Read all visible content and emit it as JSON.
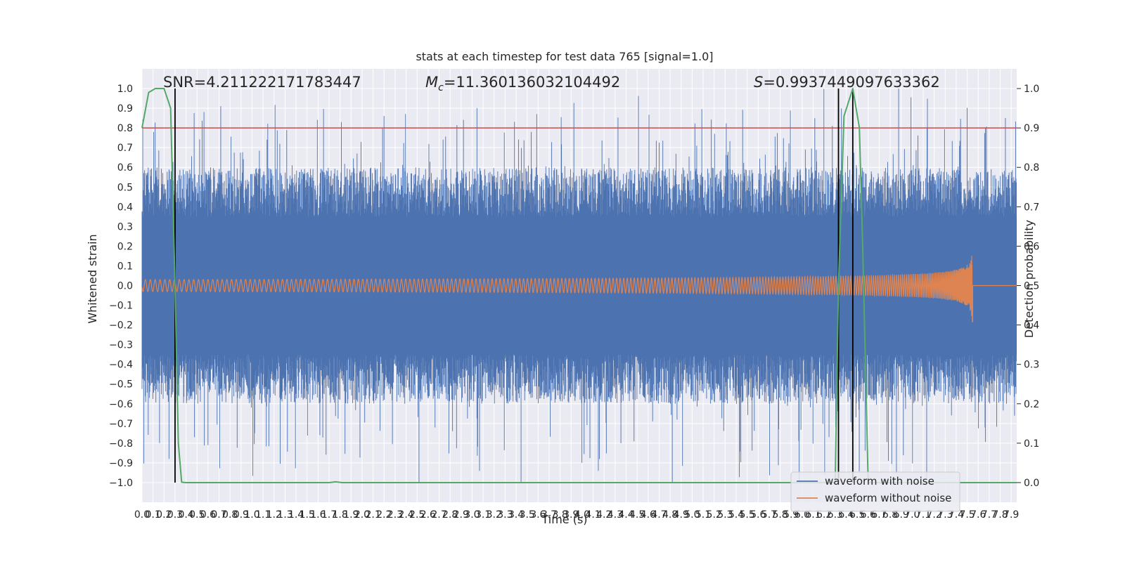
{
  "chart_data": {
    "type": "line",
    "title": "stats at each timestep for test data 765 [signal=1.0]",
    "xlabel": "Time (s)",
    "ylabel": "Whitened strain",
    "y2label": "Detection probability",
    "xlim": [
      0.0,
      7.95
    ],
    "ylim": [
      -1.1,
      1.1
    ],
    "y2lim": [
      -0.05,
      1.05
    ],
    "x_ticks": [
      "0.0",
      "0.1",
      "0.2",
      "0.3",
      "0.4",
      "0.5",
      "0.6",
      "0.7",
      "0.8",
      "0.9",
      "1.0",
      "1.1",
      "1.2",
      "1.3",
      "1.4",
      "1.5",
      "1.6",
      "1.7",
      "1.8",
      "1.9",
      "2.0",
      "2.1",
      "2.2",
      "2.3",
      "2.4",
      "2.5",
      "2.6",
      "2.7",
      "2.8",
      "2.9",
      "3.0",
      "3.1",
      "3.2",
      "3.3",
      "3.4",
      "3.5",
      "3.6",
      "3.7",
      "3.8",
      "3.9",
      "4.0",
      "4.1",
      "4.2",
      "4.3",
      "4.4",
      "4.5",
      "4.6",
      "4.7",
      "4.8",
      "4.9",
      "5.0",
      "5.1",
      "5.2",
      "5.3",
      "5.4",
      "5.5",
      "5.6",
      "5.7",
      "5.8",
      "5.9",
      "6.0",
      "6.1",
      "6.2",
      "6.3",
      "6.4",
      "6.5",
      "6.6",
      "6.7",
      "6.8",
      "6.9",
      "7.0",
      "7.1",
      "7.2",
      "7.3",
      "7.4",
      "7.5",
      "7.6",
      "7.7",
      "7.8",
      "7.9"
    ],
    "y_ticks": [
      "1.0",
      "0.9",
      "0.8",
      "0.7",
      "0.6",
      "0.5",
      "0.4",
      "0.3",
      "0.2",
      "0.1",
      "0.0",
      "−0.1",
      "−0.2",
      "−0.3",
      "−0.4",
      "−0.5",
      "−0.6",
      "−0.7",
      "−0.8",
      "−0.9",
      "−1.0"
    ],
    "y2_ticks": [
      "1.0",
      "0.9",
      "0.8",
      "0.7",
      "0.6",
      "0.5",
      "0.4",
      "0.3",
      "0.2",
      "0.1",
      "0.0"
    ],
    "threshold": 0.8,
    "vertical_lines": [
      0.3,
      6.33,
      6.46
    ],
    "annotations": [
      {
        "text": "SNR=4.211222171783447"
      },
      {
        "prefix": "M",
        "subscript": "c",
        "text": "=11.360136032104492"
      },
      {
        "prefix": "S",
        "text": "=0.9937449097633362"
      }
    ],
    "series": [
      {
        "name": "waveform with noise",
        "color": "#4c72b0",
        "axis": "left",
        "kind": "noise",
        "note_amplitude_core": 0.35,
        "peak": 1.0
      },
      {
        "name": "waveform without noise",
        "color": "#dd8452",
        "axis": "left",
        "kind": "chirp",
        "merger_time": 7.55,
        "peak": 0.2
      },
      {
        "name": "",
        "color": "#55a868",
        "axis": "right",
        "x": [
          0.0,
          0.06,
          0.12,
          0.2,
          0.26,
          0.3,
          0.33,
          0.36,
          0.4,
          1.7,
          1.76,
          1.82,
          6.3,
          6.33,
          6.38,
          6.46,
          6.52,
          6.55,
          6.6,
          7.95
        ],
        "y": [
          0.9,
          0.99,
          1.0,
          1.0,
          0.95,
          0.5,
          0.1,
          0.001,
          0.0,
          0.0,
          0.002,
          0.0,
          0.0,
          0.5,
          0.93,
          1.0,
          0.9,
          0.6,
          0.0,
          0.0
        ]
      }
    ],
    "legend_placement": "lower-right",
    "grid": true,
    "colors": {
      "plot_bg": "#eaeaf2",
      "grid": "#ffffff",
      "threshold": "#c44e52",
      "vline": "#000000"
    }
  }
}
